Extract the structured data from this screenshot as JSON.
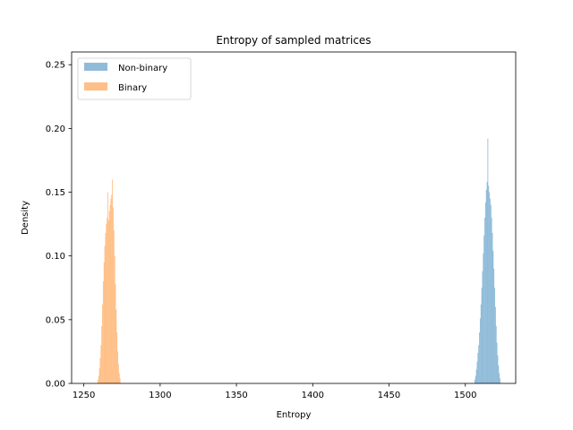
{
  "chart_data": {
    "type": "bar",
    "subtype": "histogram",
    "title": "Entropy of sampled matrices",
    "xlabel": "Entropy",
    "ylabel": "Density",
    "xlim": [
      1242,
      1533
    ],
    "ylim": [
      0,
      0.26
    ],
    "xticks": [
      1250,
      1300,
      1350,
      1400,
      1450,
      1500
    ],
    "yticks": [
      0.0,
      0.05,
      0.1,
      0.15,
      0.2,
      0.25
    ],
    "ytick_labels": [
      "0.00",
      "0.05",
      "0.10",
      "0.15",
      "0.20",
      "0.25"
    ],
    "grid": false,
    "legend_position": "top-left",
    "bin_width": 0.5,
    "series": [
      {
        "name": "Non-binary",
        "color": "#1f77b4",
        "alpha": 0.5,
        "bin_start": 1506,
        "density": [
          0.003,
          0.006,
          0.011,
          0.017,
          0.024,
          0.03,
          0.04,
          0.051,
          0.062,
          0.075,
          0.088,
          0.102,
          0.116,
          0.13,
          0.142,
          0.152,
          0.158,
          0.192,
          0.155,
          0.15,
          0.145,
          0.14,
          0.13,
          0.118,
          0.104,
          0.09,
          0.075,
          0.06,
          0.045,
          0.032,
          0.022,
          0.014,
          0.008,
          0.004
        ]
      },
      {
        "name": "Binary",
        "color": "#ff7f0e",
        "alpha": 0.5,
        "bin_start": 1259,
        "density": [
          0.003,
          0.006,
          0.012,
          0.02,
          0.03,
          0.045,
          0.062,
          0.08,
          0.095,
          0.108,
          0.118,
          0.125,
          0.13,
          0.15,
          0.128,
          0.135,
          0.14,
          0.145,
          0.148,
          0.16,
          0.138,
          0.12,
          0.1,
          0.078,
          0.058,
          0.04,
          0.025,
          0.015,
          0.008,
          0.004
        ]
      }
    ]
  }
}
